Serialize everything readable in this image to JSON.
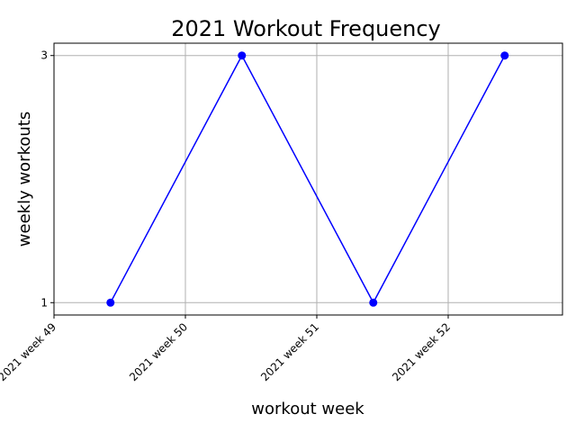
{
  "chart_data": {
    "type": "line",
    "title": "2021 Workout Frequency",
    "xlabel": "workout week",
    "ylabel": "weekly workouts",
    "x_tick_labels": [
      "2021 week 49",
      "2021 week 50",
      "2021 week 51",
      "2021 week 52"
    ],
    "y_ticks": [
      1,
      3
    ],
    "xlim": [
      49,
      52.87
    ],
    "ylim": [
      0.9,
      3.1
    ],
    "grid": true,
    "series": [
      {
        "x": [
          49.43,
          50.43,
          51.43,
          52.43
        ],
        "values": [
          1,
          3,
          1,
          3
        ],
        "color": "#0000ff",
        "marker": "circle"
      }
    ]
  }
}
